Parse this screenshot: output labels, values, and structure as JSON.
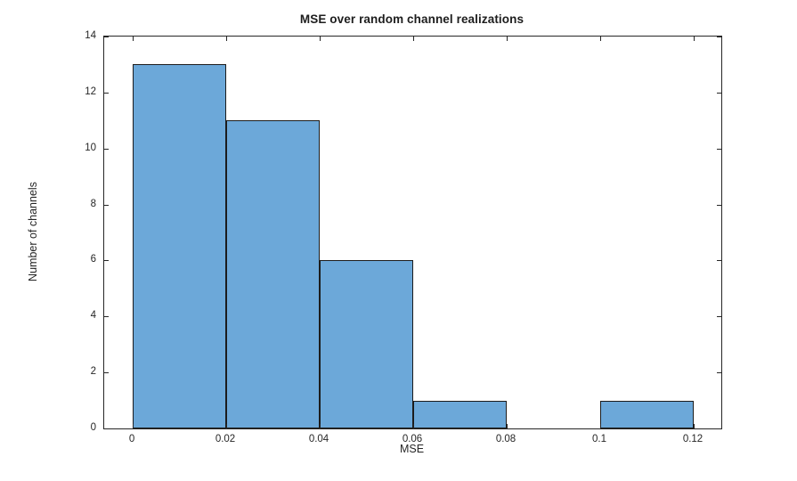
{
  "figure": {
    "background": "#ffffff"
  },
  "chart_data": {
    "type": "bar",
    "subtype": "histogram",
    "title": "MSE over random channel realizations",
    "xlabel": "MSE",
    "ylabel": "Number of channels",
    "bin_edges": [
      0,
      0.02,
      0.04,
      0.06,
      0.08,
      0.1,
      0.12
    ],
    "counts": [
      13,
      11,
      6,
      1,
      0,
      1
    ],
    "x_tick_values": [
      0,
      0.02,
      0.04,
      0.06,
      0.08,
      0.1,
      0.12
    ],
    "x_tick_labels": [
      "0",
      "0.02",
      "0.04",
      "0.06",
      "0.08",
      "0.1",
      "0.12"
    ],
    "y_tick_values": [
      0,
      2,
      4,
      6,
      8,
      10,
      12,
      14
    ],
    "y_tick_labels": [
      "0",
      "2",
      "4",
      "6",
      "8",
      "10",
      "12",
      "14"
    ],
    "xlim": [
      -0.0061,
      0.1259
    ],
    "ylim": [
      0,
      14
    ],
    "grid": false,
    "legend": null,
    "box": true,
    "tick_direction": "in",
    "colors": {
      "bar_fill": "#6CA8D9",
      "bar_edge": "#1c1c1c",
      "axis": "#262626",
      "title_text": "#1d1d1d",
      "background": "#ffffff"
    }
  }
}
